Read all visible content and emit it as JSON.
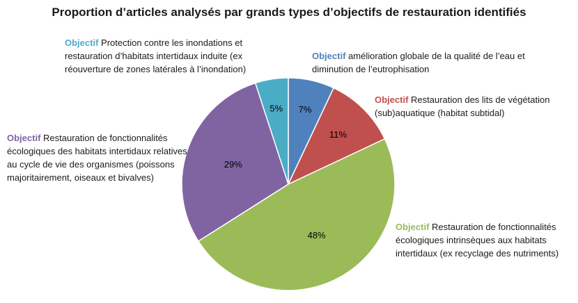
{
  "title": "Proportion  d’articles  analysés  par  grands  types  d’objectifs  de  restauration  identifiés",
  "keyword": "Objectif",
  "colors": {
    "eau": "#4f81bd",
    "vegetation": "#c0504d",
    "intrinseques": "#9bbb59",
    "cycle": "#8064a2",
    "protection": "#4bacc6"
  },
  "chart_data": {
    "type": "pie",
    "title": "Proportion  d’articles  analysés  par  grands  types  d’objectifs  de  restauration  identifiés",
    "start_angle": "top, clockwise",
    "slices": [
      {
        "key": "eau",
        "value": 7,
        "label": "7%",
        "color": "#4f81bd",
        "desc": " amélioration  globale de la qualité de l’eau et diminution  de l’eutrophisation"
      },
      {
        "key": "vegetation",
        "value": 11,
        "label": "11%",
        "color": "#c0504d",
        "desc": "  Restauration des lits de végétation (sub)aquatique (habitat subtidal)"
      },
      {
        "key": "intrinseques",
        "value": 48,
        "label": "48%",
        "color": "#9bbb59",
        "desc": " Restauration de fonctionnalités écologiques intrinsèques aux habitats intertidaux (ex recyclage des nutriments)"
      },
      {
        "key": "cycle",
        "value": 29,
        "label": "29%",
        "color": "#8064a2",
        "desc": " Restauration de fonctionnalités écologiques des habitats intertidaux relatives au cycle de vie des organismes (poissons majoritairement,  oiseaux et bivalves)"
      },
      {
        "key": "protection",
        "value": 5,
        "label": "5%",
        "color": "#4bacc6",
        "desc": " Protection  contre les inondations et restauration d’habitats intertidaux induite (ex réouverture  de zones latérales à l’inondation)"
      }
    ]
  }
}
